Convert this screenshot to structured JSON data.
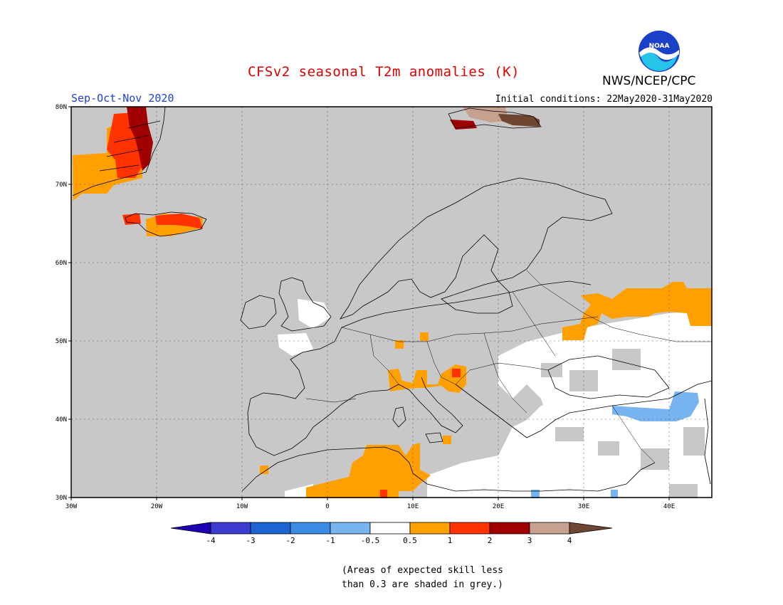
{
  "header": {
    "title": "CFSv2 seasonal T2m anomalies (K)",
    "season": "Sep-Oct-Nov 2020",
    "initial_conditions": "Initial conditions: 22May2020-31May2020",
    "organization": "NWS/NCEP/CPC",
    "logo_text": "NOAA"
  },
  "map": {
    "lat_labels": [
      "80N",
      "70N",
      "60N",
      "50N",
      "40N",
      "30N"
    ],
    "lon_labels": [
      "30W",
      "20W",
      "10W",
      "0",
      "10E",
      "20E",
      "30E",
      "40E"
    ],
    "background_grey": "#c8c8c8"
  },
  "colorbar": {
    "labels": [
      "-4",
      "-3",
      "-2",
      "-1",
      "-0.5",
      "0.5",
      "1",
      "2",
      "3",
      "4"
    ],
    "colors": [
      "#1e00b4",
      "#3c3cd2",
      "#1e64d2",
      "#3c8ce6",
      "#78b4f0",
      "#ffffff",
      "#ffa000",
      "#ff3200",
      "#a00000",
      "#c8a090",
      "#6e4632"
    ]
  },
  "note": {
    "line1": "(Areas of expected skill less",
    "line2": "than 0.3 are shaded in grey.)"
  }
}
